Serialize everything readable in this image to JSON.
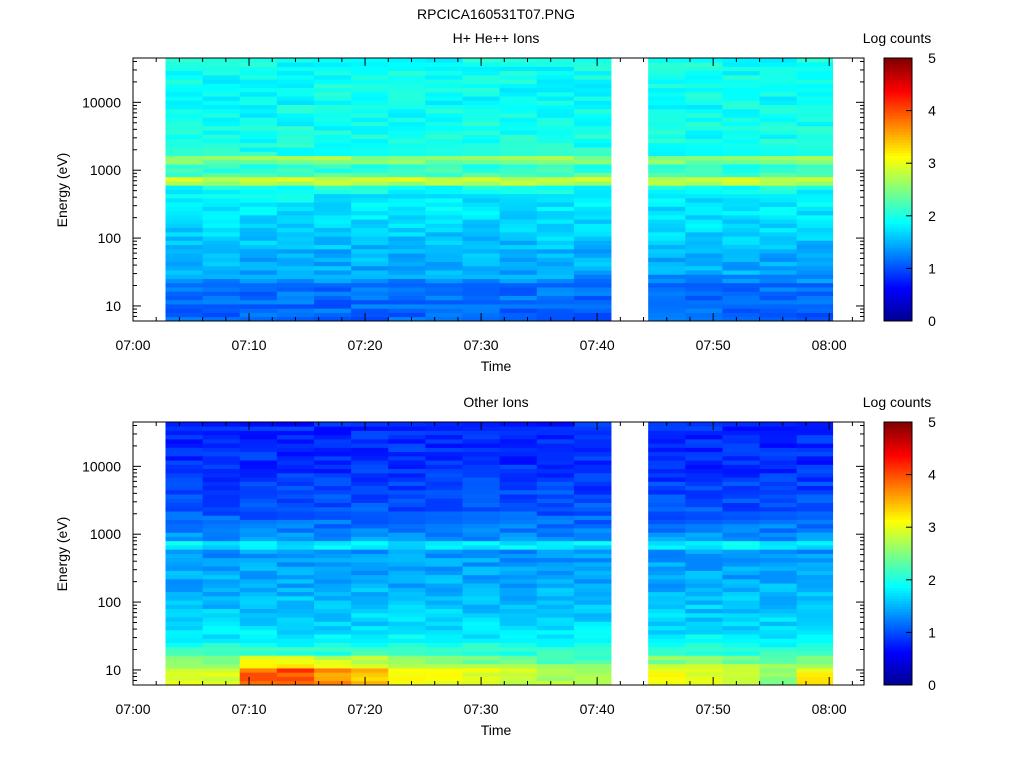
{
  "page_title": "RPCICA160531T07.PNG",
  "colormap": [
    "#00008f",
    "#0000ff",
    "#0080ff",
    "#00ffff",
    "#80ff80",
    "#ffff00",
    "#ff8000",
    "#ff0000",
    "#800000"
  ],
  "chart_data": [
    {
      "type": "heatmap",
      "title": "H+ He++ Ions",
      "xlabel": "Time",
      "ylabel": "Energy (eV)",
      "colorbar_label": "Log counts",
      "colorbar_ticks": [
        "0",
        "1",
        "2",
        "3",
        "4",
        "5"
      ],
      "crange": [
        0,
        5
      ],
      "x_ticks": [
        "07:00",
        "07:10",
        "07:20",
        "07:30",
        "07:40",
        "07:50",
        "08:00"
      ],
      "xlim_min": [
        0,
        63
      ],
      "y_ticks": [
        "10",
        "100",
        "1000",
        "10000"
      ],
      "ylim_ev": [
        6,
        45000
      ],
      "y_scale": "log",
      "data_gap_min": [
        41.2,
        44.4
      ],
      "columns": [
        {
          "t0": 2.8,
          "t1": 6.0,
          "seed": 11,
          "scale": 1.0
        },
        {
          "t0": 6.0,
          "t1": 9.2,
          "seed": 12,
          "scale": 1.0
        },
        {
          "t0": 9.2,
          "t1": 12.4,
          "seed": 13,
          "scale": 1.0
        },
        {
          "t0": 12.4,
          "t1": 15.6,
          "seed": 14,
          "scale": 1.0
        },
        {
          "t0": 15.6,
          "t1": 18.8,
          "seed": 15,
          "scale": 1.0
        },
        {
          "t0": 18.8,
          "t1": 22.0,
          "seed": 16,
          "scale": 1.0
        },
        {
          "t0": 22.0,
          "t1": 25.2,
          "seed": 17,
          "scale": 1.0
        },
        {
          "t0": 25.2,
          "t1": 28.4,
          "seed": 18,
          "scale": 1.0
        },
        {
          "t0": 28.4,
          "t1": 31.6,
          "seed": 19,
          "scale": 1.0
        },
        {
          "t0": 31.6,
          "t1": 34.8,
          "seed": 20,
          "scale": 1.0
        },
        {
          "t0": 34.8,
          "t1": 38.0,
          "seed": 21,
          "scale": 1.0
        },
        {
          "t0": 38.0,
          "t1": 41.2,
          "seed": 22,
          "scale": 1.0
        },
        {
          "t0": 44.4,
          "t1": 47.6,
          "seed": 23,
          "scale": 1.0
        },
        {
          "t0": 47.6,
          "t1": 50.8,
          "seed": 24,
          "scale": 1.0
        },
        {
          "t0": 50.8,
          "t1": 54.0,
          "seed": 25,
          "scale": 1.0
        },
        {
          "t0": 54.0,
          "t1": 57.2,
          "seed": 26,
          "scale": 1.0
        },
        {
          "t0": 57.2,
          "t1": 60.3,
          "seed": 27,
          "scale": 1.0
        }
      ],
      "energy_profile": [
        {
          "e": 6,
          "v": 1.1
        },
        {
          "e": 10,
          "v": 1.15
        },
        {
          "e": 20,
          "v": 1.2
        },
        {
          "e": 30,
          "v": 1.45
        },
        {
          "e": 60,
          "v": 1.5
        },
        {
          "e": 150,
          "v": 1.7
        },
        {
          "e": 400,
          "v": 1.8
        },
        {
          "e": 600,
          "v": 2.0
        },
        {
          "e": 700,
          "v": 3.6
        },
        {
          "e": 780,
          "v": 2.3
        },
        {
          "e": 1200,
          "v": 2.0
        },
        {
          "e": 1450,
          "v": 2.9
        },
        {
          "e": 1700,
          "v": 2.0
        },
        {
          "e": 10000,
          "v": 1.9
        },
        {
          "e": 45000,
          "v": 1.95
        }
      ]
    },
    {
      "type": "heatmap",
      "title": "Other Ions",
      "xlabel": "Time",
      "ylabel": "Energy (eV)",
      "colorbar_label": "Log counts",
      "colorbar_ticks": [
        "0",
        "1",
        "2",
        "3",
        "4",
        "5"
      ],
      "crange": [
        0,
        5
      ],
      "x_ticks": [
        "07:00",
        "07:10",
        "07:20",
        "07:30",
        "07:40",
        "07:50",
        "08:00"
      ],
      "xlim_min": [
        0,
        63
      ],
      "y_ticks": [
        "10",
        "100",
        "1000",
        "10000"
      ],
      "ylim_ev": [
        6,
        45000
      ],
      "y_scale": "log",
      "data_gap_min": [
        41.2,
        44.4
      ],
      "columns": [
        {
          "t0": 2.8,
          "t1": 6.0,
          "seed": 31,
          "scale": 3.0
        },
        {
          "t0": 6.0,
          "t1": 9.2,
          "seed": 32,
          "scale": 3.0
        },
        {
          "t0": 9.2,
          "t1": 12.4,
          "seed": 33,
          "scale": 3.9
        },
        {
          "t0": 12.4,
          "t1": 15.6,
          "seed": 34,
          "scale": 4.0
        },
        {
          "t0": 15.6,
          "t1": 18.8,
          "seed": 35,
          "scale": 3.6
        },
        {
          "t0": 18.8,
          "t1": 22.0,
          "seed": 36,
          "scale": 3.4
        },
        {
          "t0": 22.0,
          "t1": 25.2,
          "seed": 37,
          "scale": 3.0
        },
        {
          "t0": 25.2,
          "t1": 28.4,
          "seed": 38,
          "scale": 3.0
        },
        {
          "t0": 28.4,
          "t1": 31.6,
          "seed": 39,
          "scale": 3.0
        },
        {
          "t0": 31.6,
          "t1": 34.8,
          "seed": 40,
          "scale": 2.9
        },
        {
          "t0": 34.8,
          "t1": 38.0,
          "seed": 41,
          "scale": 2.7
        },
        {
          "t0": 38.0,
          "t1": 41.2,
          "seed": 42,
          "scale": 2.6
        },
        {
          "t0": 44.4,
          "t1": 47.6,
          "seed": 43,
          "scale": 3.0
        },
        {
          "t0": 47.6,
          "t1": 50.8,
          "seed": 44,
          "scale": 3.0
        },
        {
          "t0": 50.8,
          "t1": 54.0,
          "seed": 45,
          "scale": 2.9
        },
        {
          "t0": 54.0,
          "t1": 57.2,
          "seed": 46,
          "scale": 2.6
        },
        {
          "t0": 57.2,
          "t1": 60.3,
          "seed": 47,
          "scale": 3.1
        }
      ],
      "energy_profile": [
        {
          "e": 6,
          "v": 3.0
        },
        {
          "e": 11,
          "v": 3.0
        },
        {
          "e": 12,
          "v": 2.5
        },
        {
          "e": 16,
          "v": 2.5
        },
        {
          "e": 17,
          "v": 2.1
        },
        {
          "e": 25,
          "v": 1.95
        },
        {
          "e": 40,
          "v": 1.7
        },
        {
          "e": 150,
          "v": 1.5
        },
        {
          "e": 600,
          "v": 1.35
        },
        {
          "e": 700,
          "v": 2.2
        },
        {
          "e": 790,
          "v": 1.4
        },
        {
          "e": 2000,
          "v": 1.05
        },
        {
          "e": 10000,
          "v": 0.85
        },
        {
          "e": 45000,
          "v": 0.8
        }
      ]
    }
  ]
}
